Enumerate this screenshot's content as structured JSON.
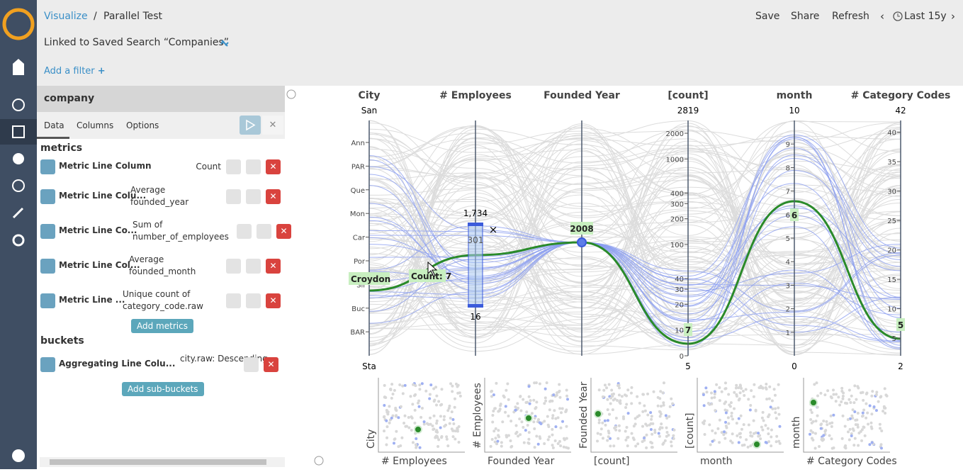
{
  "header": {
    "breadcrumb_link": "Visualize",
    "breadcrumb_current": "Parallel Test",
    "actions": [
      "Save",
      "Share",
      "Refresh"
    ],
    "time_range": "Last 15y",
    "linked_search": "Linked to Saved Search “Companies”",
    "add_filter": "Add a filter"
  },
  "editor": {
    "index": "company",
    "tabs": [
      "Data",
      "Columns",
      "Options"
    ],
    "metrics_heading": "metrics",
    "metrics": [
      {
        "label": "Metric Line Column",
        "description": "Count"
      },
      {
        "label": "Metric Line Colu...",
        "description": "Average founded_year"
      },
      {
        "label": "Metric Line Co...",
        "description": "Sum of number_of_employees"
      },
      {
        "label": "Metric Line Col...",
        "description": "Average founded_month"
      },
      {
        "label": "Metric Line ...",
        "description": "Unique count of category_code.raw"
      }
    ],
    "add_metrics": "Add metrics",
    "buckets_heading": "buckets",
    "buckets": [
      {
        "label": "Aggregating Line Colu...",
        "description": "city.raw: Descending"
      }
    ],
    "add_buckets": "Add sub-buckets"
  },
  "parallel": {
    "axes": [
      {
        "name": "City",
        "top": "San",
        "bottom": "Sta",
        "ticks": [
          "Ann",
          "PAR",
          "Que",
          "Mon",
          "Car",
          "Por",
          "Sil",
          "Buc",
          "BAR"
        ]
      },
      {
        "name": "# Employees"
      },
      {
        "name": "Founded Year"
      },
      {
        "name": "[count]",
        "top": 2819,
        "bottom": 5,
        "ticks": [
          2000,
          1000,
          400,
          300,
          200,
          100,
          40,
          30,
          20,
          10,
          0
        ]
      },
      {
        "name": "month",
        "top": 10,
        "bottom": 0,
        "ticks": [
          1,
          2,
          3,
          4,
          5,
          6,
          7,
          8,
          9
        ]
      },
      {
        "name": "# Category Codes",
        "top": 42,
        "bottom": 2,
        "ticks": [
          40,
          35,
          30,
          25,
          20,
          15,
          10,
          5
        ]
      }
    ],
    "brush": {
      "max": "1,734",
      "min": "16",
      "value": "301"
    },
    "selection": {
      "city": "Croydon",
      "count": "Count: 7",
      "year": "2008",
      "count_value": "7",
      "month_value": "6",
      "codes_value": "5"
    }
  },
  "scatter": [
    {
      "x": "# Employees",
      "y": "City"
    },
    {
      "x": "Founded Year",
      "y": "# Employees"
    },
    {
      "x": "[count]",
      "y": "Founded Year"
    },
    {
      "x": "month",
      "y": "[count]"
    },
    {
      "x": "# Category Codes",
      "y": "month"
    }
  ]
}
